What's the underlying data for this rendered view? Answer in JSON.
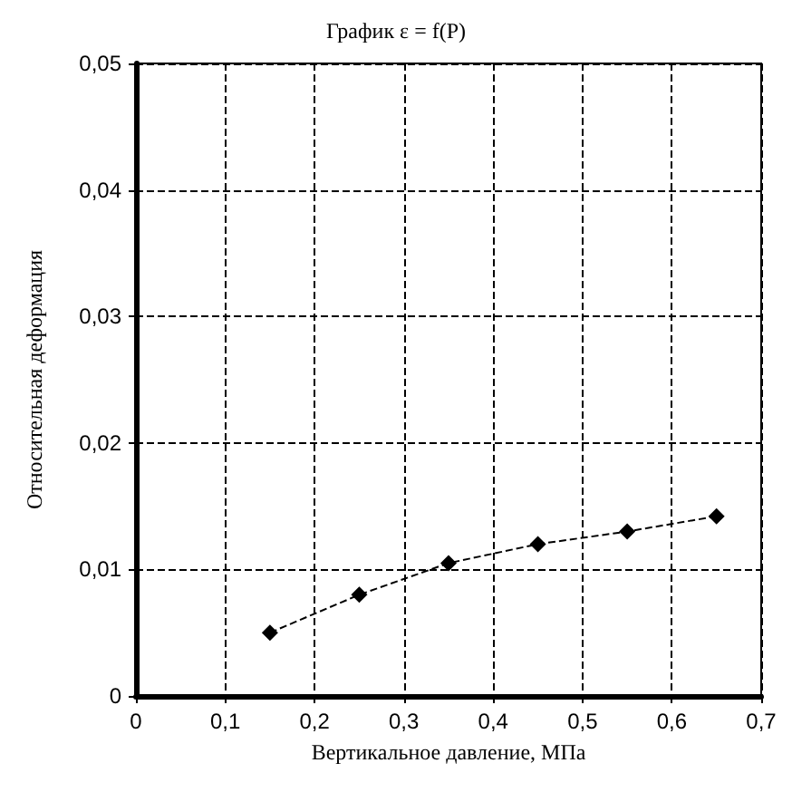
{
  "chart_data": {
    "type": "line",
    "title": "График ε = f(P)",
    "xlabel": "Вертикальное давление, МПа",
    "ylabel": "Относительная деформация",
    "x": [
      0.15,
      0.25,
      0.35,
      0.45,
      0.55,
      0.65
    ],
    "series": [
      {
        "color": "#000000",
        "values": [
          0.005,
          0.008,
          0.0105,
          0.012,
          0.013,
          0.0142
        ]
      }
    ],
    "marker": "diamond",
    "line_style": "dashed",
    "grid": true,
    "xlim": [
      0,
      0.7
    ],
    "xticks": [
      0,
      {
        "value": 0.1,
        "label": "0,1"
      },
      {
        "value": 0.2,
        "label": "0,2"
      },
      {
        "value": 0.3,
        "label": "0,3"
      },
      {
        "value": 0.4,
        "label": "0,4"
      },
      {
        "value": 0.5,
        "label": "0,5"
      },
      {
        "value": 0.6,
        "label": "0,6"
      },
      {
        "value": 0.7,
        "label": "0,7"
      }
    ],
    "ylim": [
      0,
      0.05
    ],
    "yticks": [
      0,
      {
        "value": 0.01,
        "label": "0,01"
      },
      {
        "value": 0.02,
        "label": "0,02"
      },
      {
        "value": 0.03,
        "label": "0,03"
      },
      {
        "value": 0.04,
        "label": "0,04"
      },
      {
        "value": 0.05,
        "label": "0,05"
      }
    ]
  }
}
